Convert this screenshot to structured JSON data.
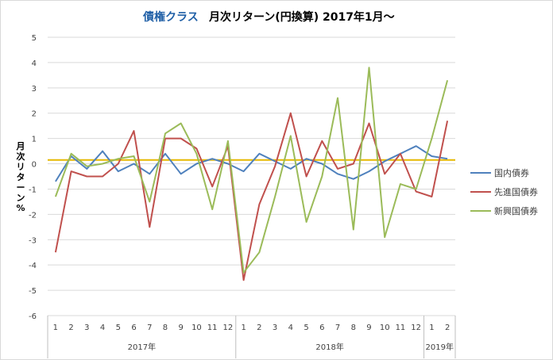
{
  "chart_data": {
    "type": "line",
    "title_part1": "債権クラス",
    "title_part2": "月次リターン(円換算) 2017年1月～",
    "ylabel": "月次リターン%",
    "ylim": [
      -6,
      5
    ],
    "yticks": [
      5,
      4,
      3,
      2,
      1,
      0,
      -1,
      -2,
      -3,
      -4,
      -5,
      -6
    ],
    "grid": true,
    "legend_position": "right",
    "categories": [
      "1",
      "2",
      "3",
      "4",
      "5",
      "6",
      "7",
      "8",
      "9",
      "10",
      "11",
      "12",
      "1",
      "2",
      "3",
      "4",
      "5",
      "6",
      "7",
      "8",
      "9",
      "10",
      "11",
      "12",
      "1",
      "2"
    ],
    "year_groups": [
      {
        "label": "2017年",
        "count": 12
      },
      {
        "label": "2018年",
        "count": 12
      },
      {
        "label": "2019年",
        "count": 2
      }
    ],
    "reference_line": {
      "value": 0.15,
      "color": "#e6b800"
    },
    "series": [
      {
        "name": "国内債券",
        "color": "#4f81bd",
        "values": [
          -0.7,
          0.3,
          -0.2,
          0.5,
          -0.3,
          0.0,
          -0.4,
          0.4,
          -0.4,
          0.0,
          0.2,
          0.0,
          -0.3,
          0.4,
          0.1,
          -0.2,
          0.2,
          0.0,
          -0.4,
          -0.6,
          -0.3,
          0.1,
          0.4,
          0.7,
          0.3,
          0.2
        ]
      },
      {
        "name": "先進国債券",
        "color": "#c0504d",
        "values": [
          -3.5,
          -0.3,
          -0.5,
          -0.5,
          0.0,
          1.3,
          -2.5,
          1.0,
          1.0,
          0.6,
          -0.9,
          0.7,
          -4.6,
          -1.6,
          -0.1,
          2.0,
          -0.5,
          0.9,
          -0.2,
          0.0,
          1.6,
          -0.4,
          0.4,
          -1.1,
          -1.3,
          1.7
        ]
      },
      {
        "name": "新興国債券",
        "color": "#9bbb59",
        "values": [
          -1.3,
          0.4,
          -0.1,
          0.0,
          0.2,
          0.3,
          -1.5,
          1.2,
          1.6,
          0.4,
          -1.8,
          0.9,
          -4.3,
          -3.5,
          -1.3,
          1.1,
          -2.3,
          -0.5,
          2.6,
          -2.6,
          3.8,
          -2.9,
          -0.8,
          -1.0,
          1.0,
          3.3
        ]
      }
    ]
  }
}
